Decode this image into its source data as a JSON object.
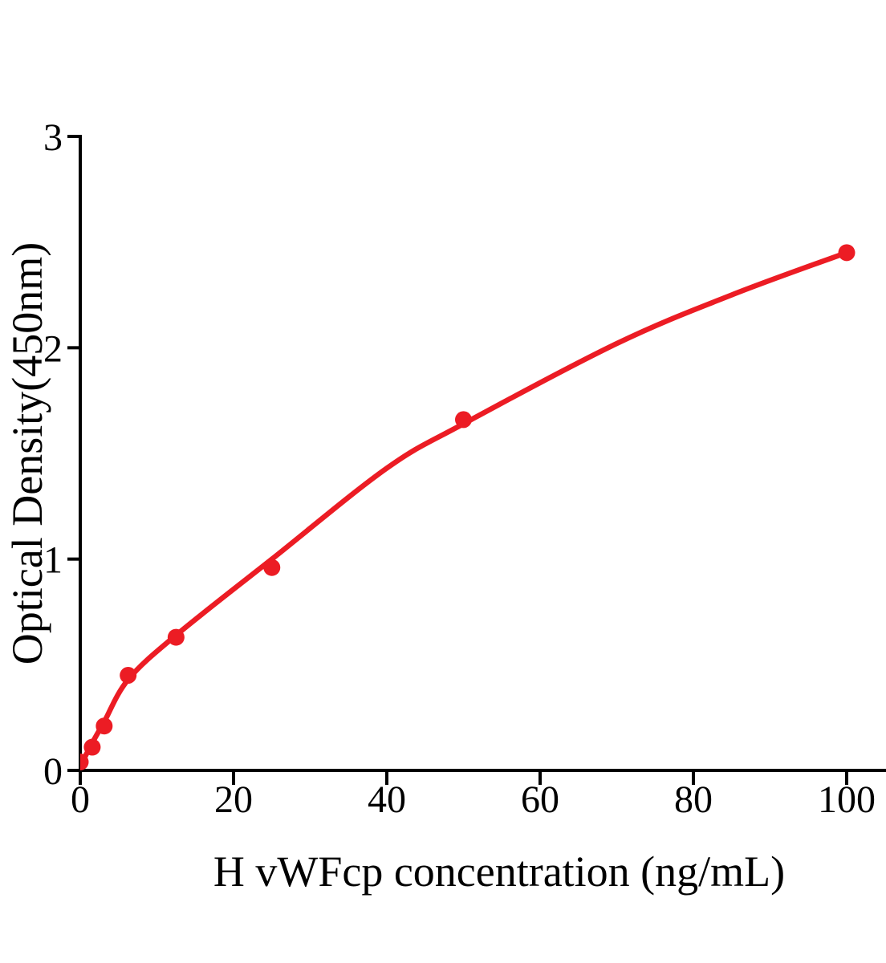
{
  "figure": {
    "background_color": "#ffffff",
    "axis_color": "#000000",
    "accent_red": "#ec1c24"
  },
  "chart_data": {
    "type": "scatter",
    "title": "",
    "xlabel": "H vWFcp concentration (ng/mL)",
    "ylabel": "Optical Density(450nm)",
    "xlim": [
      0,
      105
    ],
    "ylim": [
      0,
      3
    ],
    "x_ticks": [
      0,
      20,
      40,
      60,
      80,
      100
    ],
    "y_ticks": [
      0,
      1,
      2,
      3
    ],
    "grid": false,
    "legend_position": "none",
    "series": [
      {
        "name": "standard-data-points",
        "type": "scatter",
        "color": "#ec1c24",
        "marker_radius": 10.5,
        "points": [
          [
            0,
            0.04
          ],
          [
            1.5625,
            0.11
          ],
          [
            3.125,
            0.21
          ],
          [
            6.25,
            0.45
          ],
          [
            12.5,
            0.63
          ],
          [
            25,
            0.96
          ],
          [
            50,
            1.66
          ],
          [
            100,
            2.45
          ]
        ]
      },
      {
        "name": "fitted-standard-curve",
        "type": "line",
        "color": "#ec1c24",
        "stroke_width": 6.5,
        "points": [
          [
            0,
            0.02
          ],
          [
            1.5625,
            0.13
          ],
          [
            3.125,
            0.23
          ],
          [
            6.25,
            0.43
          ],
          [
            12.5,
            0.64
          ],
          [
            25,
            1.0
          ],
          [
            40,
            1.43
          ],
          [
            50,
            1.64
          ],
          [
            70,
            2.02
          ],
          [
            85,
            2.25
          ],
          [
            100,
            2.45
          ]
        ]
      }
    ]
  }
}
